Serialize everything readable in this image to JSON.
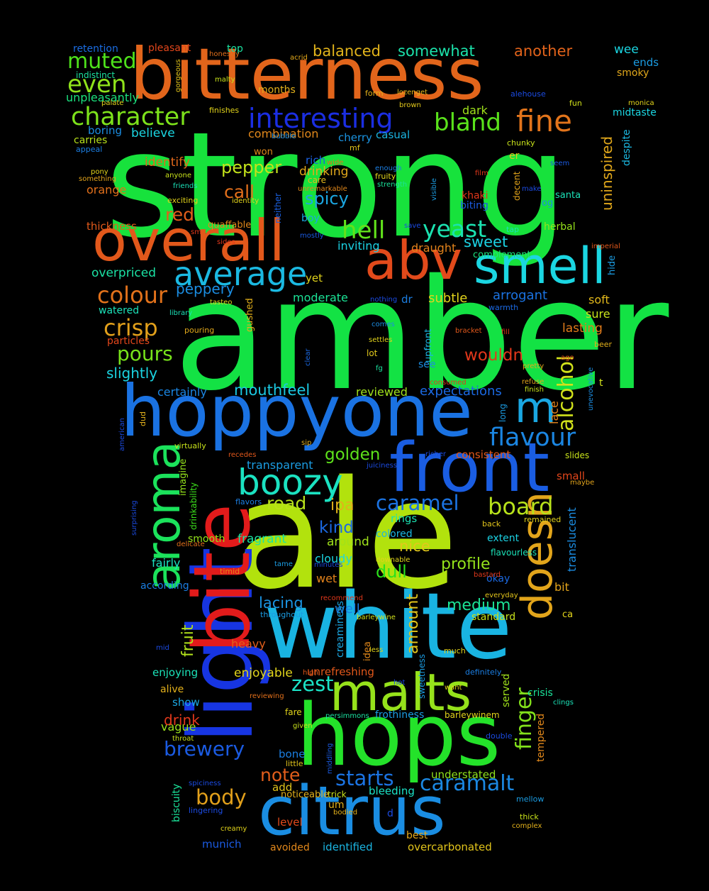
{
  "background": "#000000",
  "words": [
    {
      "text": "strong",
      "color": "#17e23c"
    },
    {
      "text": "amber",
      "color": "#13e244"
    },
    {
      "text": "ale",
      "color": "#b2e20d"
    },
    {
      "text": "bitterness",
      "color": "#e2651b"
    },
    {
      "text": "white",
      "color": "#19b4e2"
    },
    {
      "text": "hoppyone",
      "color": "#1a72e2"
    },
    {
      "text": "light",
      "color": "#1735e2"
    },
    {
      "text": "bite",
      "color": "#e21b1b"
    },
    {
      "text": "hops",
      "color": "#24e22a"
    },
    {
      "text": "citrus",
      "color": "#1a8de2"
    },
    {
      "text": "front",
      "color": "#1a5de2"
    },
    {
      "text": "overall",
      "color": "#e2581b"
    },
    {
      "text": "abv",
      "color": "#e24a1b"
    },
    {
      "text": "smell",
      "color": "#1bd6e2"
    },
    {
      "text": "aroma",
      "color": "#1be25b"
    },
    {
      "text": "doesn",
      "color": "#e2a51b"
    },
    {
      "text": "malts",
      "color": "#96e21b"
    },
    {
      "text": "m",
      "color": "#1aa7e2"
    },
    {
      "text": "boozy",
      "color": "#1be2c1"
    },
    {
      "text": "average",
      "color": "#1bb9e2"
    },
    {
      "text": "interesting",
      "color": "#1b2ee2"
    },
    {
      "text": "character",
      "color": "#7de21b"
    },
    {
      "text": "fine",
      "color": "#e2741b"
    },
    {
      "text": "bland",
      "color": "#5ae21b"
    },
    {
      "text": "muted",
      "color": "#4ee21b"
    },
    {
      "text": "even",
      "color": "#8fe21b"
    },
    {
      "text": "hell",
      "color": "#62e21b"
    },
    {
      "text": "yeast",
      "color": "#1be2b0"
    },
    {
      "text": "colour",
      "color": "#e2721b"
    },
    {
      "text": "crisp",
      "color": "#e2a01b"
    },
    {
      "text": "flavour",
      "color": "#1b86e2"
    },
    {
      "text": "alcohol",
      "color": "#d2e21b"
    },
    {
      "text": "board",
      "color": "#b8e21b"
    },
    {
      "text": "caramel",
      "color": "#1b73e2"
    },
    {
      "text": "caramalt",
      "color": "#1b88e2"
    },
    {
      "text": "finger",
      "color": "#83e21b"
    },
    {
      "text": "zest",
      "color": "#1be2c6"
    },
    {
      "text": "body",
      "color": "#e2a01b"
    },
    {
      "text": "brewery",
      "color": "#1b5be2"
    },
    {
      "text": "starts",
      "color": "#1b73e2"
    },
    {
      "text": "note",
      "color": "#e25e1b"
    },
    {
      "text": "pours",
      "color": "#77e21b"
    },
    {
      "text": "red",
      "color": "#e25e1b"
    },
    {
      "text": "spicy",
      "color": "#1ba7e2"
    },
    {
      "text": "call",
      "color": "#e26f1b"
    },
    {
      "text": "pepper",
      "color": "#c3e21b"
    },
    {
      "text": "sweet",
      "color": "#1bd1e2"
    },
    {
      "text": "peppery",
      "color": "#1b8de2"
    },
    {
      "text": "golden",
      "color": "#5ee21b"
    },
    {
      "text": "road",
      "color": "#b8e21b"
    },
    {
      "text": "ipa",
      "color": "#e2b21b"
    },
    {
      "text": "kind",
      "color": "#1b69e2"
    },
    {
      "text": "nice",
      "color": "#e2c81b"
    },
    {
      "text": "dull",
      "color": "#2be21b"
    },
    {
      "text": "profile",
      "color": "#94e21b"
    },
    {
      "text": "medium",
      "color": "#1be295"
    },
    {
      "text": "amount",
      "color": "#e2c41b"
    },
    {
      "text": "fruit",
      "color": "#b2e21b"
    },
    {
      "text": "lacing",
      "color": "#1b94e2"
    },
    {
      "text": "wouldn",
      "color": "#e2371b"
    },
    {
      "text": "mouthfeel",
      "color": "#1bc9e2"
    },
    {
      "text": "slightly",
      "color": "#1bd4e2"
    },
    {
      "text": "balanced",
      "color": "#e2b41b"
    },
    {
      "text": "somewhat",
      "color": "#1be2ab"
    },
    {
      "text": "another",
      "color": "#e2631b"
    },
    {
      "text": "uninspired",
      "color": "#e2a81b"
    },
    {
      "text": "enjoyable",
      "color": "#e2d51b"
    },
    {
      "text": "heavy",
      "color": "#e25e1b"
    },
    {
      "text": "vague",
      "color": "#9ae21b"
    },
    {
      "text": "drink",
      "color": "#e2381b"
    },
    {
      "text": "subtle",
      "color": "#e2d41b"
    },
    {
      "text": "transparent",
      "color": "#1b9ce2"
    },
    {
      "text": "reviewed",
      "color": "#a0e21b"
    },
    {
      "text": "expectations",
      "color": "#1b69e2"
    },
    {
      "text": "combination",
      "color": "#e2881b"
    },
    {
      "text": "believe",
      "color": "#1bd6e2"
    },
    {
      "text": "identify",
      "color": "#e2691b"
    },
    {
      "text": "orange",
      "color": "#e2701b"
    },
    {
      "text": "thickness",
      "color": "#e25a1b"
    },
    {
      "text": "overpriced",
      "color": "#1be2a4"
    },
    {
      "text": "watered",
      "color": "#1be2b8"
    },
    {
      "text": "particles",
      "color": "#e2461b"
    },
    {
      "text": "certainly",
      "color": "#1b86e2"
    },
    {
      "text": "moderate",
      "color": "#1be296"
    },
    {
      "text": "inviting",
      "color": "#1bd1e2"
    },
    {
      "text": "draught",
      "color": "#e2821b"
    },
    {
      "text": "arrogant",
      "color": "#1b73e2"
    },
    {
      "text": "lasting",
      "color": "#e27c1b"
    },
    {
      "text": "soft",
      "color": "#e2b81b"
    },
    {
      "text": "sure",
      "color": "#c8e21b"
    },
    {
      "text": "herbal",
      "color": "#96e21b"
    },
    {
      "text": "drinking",
      "color": "#e2a91b"
    },
    {
      "text": "rich",
      "color": "#1b61e2"
    },
    {
      "text": "dark",
      "color": "#a0e21b"
    },
    {
      "text": "casual",
      "color": "#1bb5e2"
    },
    {
      "text": "cherry",
      "color": "#1b94e2"
    },
    {
      "text": "boring",
      "color": "#1b8de2"
    },
    {
      "text": "carries",
      "color": "#b8e21b"
    },
    {
      "text": "unpleasantly",
      "color": "#1be27e"
    },
    {
      "text": "months",
      "color": "#e2b01b"
    },
    {
      "text": "retention",
      "color": "#1b6de2"
    },
    {
      "text": "pleasant",
      "color": "#e2461b"
    },
    {
      "text": "top",
      "color": "#1be2a0"
    },
    {
      "text": "wee",
      "color": "#1bd6e2"
    },
    {
      "text": "ends",
      "color": "#1b9ce2"
    },
    {
      "text": "smoky",
      "color": "#e2a81b"
    },
    {
      "text": "midtaste",
      "color": "#1bd6e2"
    },
    {
      "text": "despite",
      "color": "#1bb9e2"
    },
    {
      "text": "smooth",
      "color": "#94e21b"
    },
    {
      "text": "fragrant",
      "color": "#1be29f"
    },
    {
      "text": "fairly",
      "color": "#1be2c1"
    },
    {
      "text": "according",
      "color": "#1b7ee2"
    },
    {
      "text": "cloudy",
      "color": "#1bd6e2"
    },
    {
      "text": "wet",
      "color": "#e2821b"
    },
    {
      "text": "around",
      "color": "#a0e21b"
    },
    {
      "text": "colored",
      "color": "#1bb5e2"
    },
    {
      "text": "rings",
      "color": "#1be2b2"
    },
    {
      "text": "well",
      "color": "#1b7ee2"
    },
    {
      "text": "okay",
      "color": "#1b69e2"
    },
    {
      "text": "consistent",
      "color": "#e2581b"
    },
    {
      "text": "small",
      "color": "#e2461b"
    },
    {
      "text": "lace",
      "color": "#e2821b"
    },
    {
      "text": "translucent",
      "color": "#1b8de2"
    },
    {
      "text": "bit",
      "color": "#e2a41b"
    },
    {
      "text": "extent",
      "color": "#1bd1e2"
    },
    {
      "text": "standard",
      "color": "#c8e21b"
    },
    {
      "text": "enjoying",
      "color": "#1be2b8"
    },
    {
      "text": "alive",
      "color": "#e2b01b"
    },
    {
      "text": "show",
      "color": "#1ba7e2"
    },
    {
      "text": "unrefreshing",
      "color": "#e2581b"
    },
    {
      "text": "understated",
      "color": "#8fe21b"
    },
    {
      "text": "frothiness",
      "color": "#1b9ce2"
    },
    {
      "text": "served",
      "color": "#a0e21b"
    },
    {
      "text": "crisis",
      "color": "#1be29a"
    },
    {
      "text": "tempered",
      "color": "#e2881b"
    },
    {
      "text": "bleeding",
      "color": "#1be2c6"
    },
    {
      "text": "bone",
      "color": "#1b7ee2"
    },
    {
      "text": "add",
      "color": "#e2c41b"
    },
    {
      "text": "um",
      "color": "#e2b01b"
    },
    {
      "text": "level",
      "color": "#e24a1b"
    },
    {
      "text": "munich",
      "color": "#1b5be2"
    },
    {
      "text": "avoided",
      "color": "#e2881b"
    },
    {
      "text": "identified",
      "color": "#1bb5e2"
    },
    {
      "text": "overcarbonated",
      "color": "#e2c41b"
    },
    {
      "text": "best",
      "color": "#e2a81b"
    },
    {
      "text": "biscuity",
      "color": "#1be29a"
    },
    {
      "text": "creaminess",
      "color": "#1ba7e2"
    },
    {
      "text": "see",
      "color": "#1b8de2"
    },
    {
      "text": "upfront",
      "color": "#1bb5e2"
    },
    {
      "text": "gushed",
      "color": "#e2b01b"
    },
    {
      "text": "dr",
      "color": "#1b7ee2"
    },
    {
      "text": "yet",
      "color": "#e2d41b"
    },
    {
      "text": "imagine",
      "color": "#94e21b"
    },
    {
      "text": "drinkability",
      "color": "#3ce21b"
    },
    {
      "text": "sweetness",
      "color": "#1b9ce2"
    },
    {
      "text": "idea",
      "color": "#e2881b"
    },
    {
      "text": "quaffable",
      "color": "#e2881b"
    },
    {
      "text": "indistinct",
      "color": "#1be2a0"
    },
    {
      "text": "neither",
      "color": "#1b61e2"
    },
    {
      "text": "khaki",
      "color": "#e2371b"
    },
    {
      "text": "biting",
      "color": "#1b5be2"
    },
    {
      "text": "santa",
      "color": "#1be2b8"
    },
    {
      "text": "og",
      "color": "#1b8de2"
    },
    {
      "text": "er",
      "color": "#e2c81b"
    },
    {
      "text": "decent",
      "color": "#e2a41b"
    },
    {
      "text": "chunky",
      "color": "#c8e21b"
    },
    {
      "text": "fun",
      "color": "#d2e21b"
    },
    {
      "text": "alehouse",
      "color": "#1b4be2"
    },
    {
      "text": "form",
      "color": "#e2b01b"
    },
    {
      "text": "lozenget",
      "color": "#e2b81b"
    },
    {
      "text": "brown",
      "color": "#e2c81b"
    },
    {
      "text": "finishes",
      "color": "#e2d41b"
    },
    {
      "text": "acrid",
      "color": "#e2a81b"
    },
    {
      "text": "honestly",
      "color": "#e2701b"
    },
    {
      "text": "bubble",
      "color": "#1b8de2"
    },
    {
      "text": "mf",
      "color": "#e2c41b"
    },
    {
      "text": "won",
      "color": "#e2881b"
    },
    {
      "text": "enough",
      "color": "#1b7ee2"
    },
    {
      "text": "fruity",
      "color": "#e2d41b"
    },
    {
      "text": "strength",
      "color": "#1be29a"
    },
    {
      "text": "wide",
      "color": "#e2701b"
    },
    {
      "text": "care",
      "color": "#e2b81b"
    },
    {
      "text": "unremarkable",
      "color": "#e2881b"
    },
    {
      "text": "visible",
      "color": "#1b9ce2"
    },
    {
      "text": "film",
      "color": "#e2381b"
    },
    {
      "text": "make",
      "color": "#1b4be2"
    },
    {
      "text": "seem",
      "color": "#1b5be2"
    },
    {
      "text": "save",
      "color": "#1b4be2"
    },
    {
      "text": "mostly",
      "color": "#1b5be2"
    },
    {
      "text": "boy",
      "color": "#1ba7e2"
    },
    {
      "text": "tap",
      "color": "#1be2b8"
    },
    {
      "text": "complement",
      "color": "#1be27e"
    },
    {
      "text": "imperial",
      "color": "#e2581b"
    },
    {
      "text": "hide",
      "color": "#1b9ce2"
    },
    {
      "text": "warmth",
      "color": "#1b69e2"
    },
    {
      "text": "nothing",
      "color": "#1b4be2"
    },
    {
      "text": "tasteo",
      "color": "#e2d41b"
    },
    {
      "text": "library",
      "color": "#1be2b8"
    },
    {
      "text": "pouring",
      "color": "#e2a81b"
    },
    {
      "text": "comes",
      "color": "#1b8de2"
    },
    {
      "text": "settles",
      "color": "#e2d41b"
    },
    {
      "text": "lot",
      "color": "#e2c81b"
    },
    {
      "text": "fg",
      "color": "#1be2a0"
    },
    {
      "text": "clear",
      "color": "#1b69e2"
    },
    {
      "text": "bracket",
      "color": "#e2581b"
    },
    {
      "text": "fill",
      "color": "#e2381b"
    },
    {
      "text": "beer",
      "color": "#e2b01b"
    },
    {
      "text": "ago",
      "color": "#e2581b"
    },
    {
      "text": "pretty",
      "color": "#e2a81b"
    },
    {
      "text": "refuse",
      "color": "#e2a41b"
    },
    {
      "text": "consumed",
      "color": "#e2381b"
    },
    {
      "text": "unevocative",
      "color": "#1b8de2"
    },
    {
      "text": "finish",
      "color": "#c8e21b"
    },
    {
      "text": "t",
      "color": "#d2e21b"
    },
    {
      "text": "long",
      "color": "#1b9ce2"
    },
    {
      "text": "slides",
      "color": "#c8e21b"
    },
    {
      "text": "maybe",
      "color": "#e2a41b"
    },
    {
      "text": "dud",
      "color": "#e2b01b"
    },
    {
      "text": "virtually",
      "color": "#c8e21b"
    },
    {
      "text": "sip",
      "color": "#e2b01b"
    },
    {
      "text": "recedes",
      "color": "#e2581b"
    },
    {
      "text": "flavors",
      "color": "#1b7ee2"
    },
    {
      "text": "juiciness",
      "color": "#1b4be2"
    },
    {
      "text": "richer",
      "color": "#1b4be2"
    },
    {
      "text": "american",
      "color": "#1b4be2"
    },
    {
      "text": "surprising",
      "color": "#1b4be2"
    },
    {
      "text": "delicate",
      "color": "#e2701b"
    },
    {
      "text": "timid",
      "color": "#e2881b"
    },
    {
      "text": "tame",
      "color": "#1b9ce2"
    },
    {
      "text": "minutes",
      "color": "#1b4be2"
    },
    {
      "text": "downable",
      "color": "#e2d41b"
    },
    {
      "text": "bastard",
      "color": "#e2381b"
    },
    {
      "text": "back",
      "color": "#e2c41b"
    },
    {
      "text": "remained",
      "color": "#e2d41b"
    },
    {
      "text": "flavourless",
      "color": "#1be2b8"
    },
    {
      "text": "everyday",
      "color": "#e2c41b"
    },
    {
      "text": "recommend",
      "color": "#e2381b"
    },
    {
      "text": "throughout",
      "color": "#1b9ce2"
    },
    {
      "text": "barleywine",
      "color": "#d2e21b"
    },
    {
      "text": "ca",
      "color": "#e2d41b"
    },
    {
      "text": "mid",
      "color": "#1b4be2"
    },
    {
      "text": "less",
      "color": "#e2d41b"
    },
    {
      "text": "much",
      "color": "#e2d41b"
    },
    {
      "text": "high",
      "color": "#e2581b"
    },
    {
      "text": "definitely",
      "color": "#1b7ee2"
    },
    {
      "text": "hot",
      "color": "#1b4be2"
    },
    {
      "text": "want",
      "color": "#e2d41b"
    },
    {
      "text": "clings",
      "color": "#1be2b8"
    },
    {
      "text": "reviewing",
      "color": "#e2701b"
    },
    {
      "text": "fare",
      "color": "#e2d41b"
    },
    {
      "text": "persimmons",
      "color": "#1be2a0"
    },
    {
      "text": "barleywinem",
      "color": "#e2d41b"
    },
    {
      "text": "given",
      "color": "#c8e21b"
    },
    {
      "text": "throat",
      "color": "#c8e21b"
    },
    {
      "text": "double",
      "color": "#1b4be2"
    },
    {
      "text": "middling",
      "color": "#1b5be2"
    },
    {
      "text": "little",
      "color": "#e2c41b"
    },
    {
      "text": "spiciness",
      "color": "#1b4be2"
    },
    {
      "text": "noticeable",
      "color": "#e2b01b"
    },
    {
      "text": "trick",
      "color": "#c8e21b"
    },
    {
      "text": "lingering",
      "color": "#1b4be2"
    },
    {
      "text": "bodied",
      "color": "#e2b01b"
    },
    {
      "text": "creamy",
      "color": "#e2d41b"
    },
    {
      "text": "mellow",
      "color": "#1b9ce2"
    },
    {
      "text": "thick",
      "color": "#c8e21b"
    },
    {
      "text": "complex",
      "color": "#e2b01b"
    },
    {
      "text": "d",
      "color": "#1b4be2"
    },
    {
      "text": "gorgeous",
      "color": "#e2c41b"
    },
    {
      "text": "malty",
      "color": "#c8e21b"
    },
    {
      "text": "palate",
      "color": "#e2d41b"
    },
    {
      "text": "appeal",
      "color": "#1b7ee2"
    },
    {
      "text": "pony",
      "color": "#e2d41b"
    },
    {
      "text": "something",
      "color": "#e2a41b"
    },
    {
      "text": "anyone",
      "color": "#c8e21b"
    },
    {
      "text": "friends",
      "color": "#1be2b8"
    },
    {
      "text": "exciting",
      "color": "#e2d41b"
    },
    {
      "text": "identity",
      "color": "#e2d41b"
    },
    {
      "text": "sm",
      "color": "#e2381b"
    },
    {
      "text": "sides",
      "color": "#e2381b"
    },
    {
      "text": "monica",
      "color": "#e2d41b"
    }
  ]
}
